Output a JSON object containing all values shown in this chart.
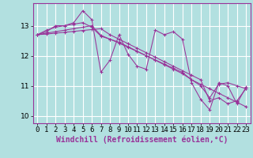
{
  "xlabel": "Windchill (Refroidissement éolien,°C)",
  "hours": [
    0,
    1,
    2,
    3,
    4,
    5,
    6,
    7,
    8,
    9,
    10,
    11,
    12,
    13,
    14,
    15,
    16,
    17,
    18,
    19,
    20,
    21,
    22,
    23
  ],
  "series": [
    [
      12.7,
      12.8,
      13.0,
      13.0,
      13.1,
      13.5,
      13.2,
      11.45,
      11.85,
      12.7,
      12.05,
      11.65,
      11.55,
      12.85,
      12.7,
      12.8,
      12.55,
      11.1,
      10.55,
      10.2,
      11.1,
      11.0,
      10.4,
      10.95
    ],
    [
      12.7,
      12.85,
      12.95,
      13.0,
      13.05,
      13.1,
      12.95,
      12.65,
      12.55,
      12.45,
      12.3,
      12.15,
      12.0,
      11.85,
      11.7,
      11.55,
      11.4,
      11.2,
      11.05,
      10.9,
      10.75,
      10.6,
      10.45,
      10.3
    ],
    [
      12.7,
      12.75,
      12.8,
      12.85,
      12.9,
      12.95,
      13.0,
      12.68,
      12.55,
      12.42,
      12.28,
      12.14,
      12.0,
      11.86,
      11.72,
      11.58,
      11.44,
      11.2,
      11.0,
      10.6,
      11.05,
      11.1,
      11.0,
      10.9
    ],
    [
      12.7,
      12.72,
      12.75,
      12.78,
      12.81,
      12.84,
      12.87,
      12.9,
      12.7,
      12.55,
      12.4,
      12.25,
      12.1,
      11.95,
      11.8,
      11.65,
      11.5,
      11.35,
      11.2,
      10.5,
      10.6,
      10.4,
      10.5,
      10.9
    ]
  ],
  "line_color": "#993399",
  "bg_color": "#b2e0e0",
  "grid_color": "#ffffff",
  "tick_label_fontsize": 6.5,
  "axis_label_fontsize": 7,
  "ylim": [
    9.75,
    13.75
  ],
  "yticks": [
    10,
    11,
    12,
    13
  ],
  "xlim": [
    -0.5,
    23.5
  ],
  "marker": "+"
}
